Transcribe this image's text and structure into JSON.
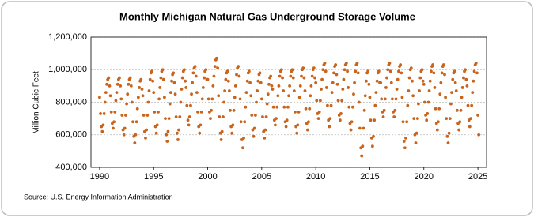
{
  "chart_data": {
    "type": "scatter",
    "title": "Monthly Michigan Natural Gas Underground Storage Volume",
    "y_label": "Million Cubic Feet",
    "source": "Source: U.S. Energy Information Administration",
    "color": "#c8641e",
    "grid": true,
    "xlim": [
      1989.2,
      2025.8
    ],
    "xticks": [
      1990,
      1995,
      2000,
      2005,
      2010,
      2015,
      2020,
      2025
    ],
    "ylim": [
      400000,
      1200000
    ],
    "yticks": [
      {
        "value": 400000,
        "label": "400,000"
      },
      {
        "value": 600000,
        "label": "600,000"
      },
      {
        "value": 800000,
        "label": "800,000"
      },
      {
        "value": 1000000,
        "label": "1,000,000"
      },
      {
        "value": 1200000,
        "label": "1,200,000"
      }
    ],
    "x": [
      1990.0,
      1990.08,
      1990.17,
      1990.25,
      1990.33,
      1990.42,
      1990.5,
      1990.58,
      1990.67,
      1990.75,
      1990.83,
      1990.92,
      1991.0,
      1991.08,
      1991.17,
      1991.25,
      1991.33,
      1991.42,
      1991.5,
      1991.58,
      1991.67,
      1991.75,
      1991.83,
      1991.92,
      1992.0,
      1992.08,
      1992.17,
      1992.25,
      1992.33,
      1992.42,
      1992.5,
      1992.58,
      1992.67,
      1992.75,
      1992.83,
      1992.92,
      1993.0,
      1993.08,
      1993.17,
      1993.25,
      1993.33,
      1993.42,
      1993.5,
      1993.58,
      1993.67,
      1993.75,
      1993.83,
      1993.92,
      1994.0,
      1994.08,
      1994.17,
      1994.25,
      1994.33,
      1994.42,
      1994.5,
      1994.58,
      1994.67,
      1994.75,
      1994.83,
      1994.92,
      1995.0,
      1995.08,
      1995.17,
      1995.25,
      1995.33,
      1995.42,
      1995.5,
      1995.58,
      1995.67,
      1995.75,
      1995.83,
      1995.92,
      1996.0,
      1996.08,
      1996.17,
      1996.25,
      1996.33,
      1996.42,
      1996.5,
      1996.58,
      1996.67,
      1996.75,
      1996.83,
      1996.92,
      1997.0,
      1997.08,
      1997.17,
      1997.25,
      1997.33,
      1997.42,
      1997.5,
      1997.58,
      1997.67,
      1997.75,
      1997.83,
      1997.92,
      1998.0,
      1998.08,
      1998.17,
      1998.25,
      1998.33,
      1998.42,
      1998.5,
      1998.58,
      1998.67,
      1998.75,
      1998.83,
      1998.92,
      1999.0,
      1999.08,
      1999.17,
      1999.25,
      1999.33,
      1999.42,
      1999.5,
      1999.58,
      1999.67,
      1999.75,
      1999.83,
      1999.92,
      2000.0,
      2000.08,
      2000.17,
      2000.25,
      2000.33,
      2000.42,
      2000.5,
      2000.58,
      2000.67,
      2000.75,
      2000.83,
      2000.92,
      2001.0,
      2001.08,
      2001.17,
      2001.25,
      2001.33,
      2001.42,
      2001.5,
      2001.58,
      2001.67,
      2001.75,
      2001.83,
      2001.92,
      2002.0,
      2002.08,
      2002.17,
      2002.25,
      2002.33,
      2002.42,
      2002.5,
      2002.58,
      2002.67,
      2002.75,
      2002.83,
      2002.92,
      2003.0,
      2003.08,
      2003.17,
      2003.25,
      2003.33,
      2003.42,
      2003.5,
      2003.58,
      2003.67,
      2003.75,
      2003.83,
      2003.92,
      2004.0,
      2004.08,
      2004.17,
      2004.25,
      2004.33,
      2004.42,
      2004.5,
      2004.58,
      2004.67,
      2004.75,
      2004.83,
      2004.92,
      2005.0,
      2005.08,
      2005.17,
      2005.25,
      2005.33,
      2005.42,
      2005.5,
      2005.58,
      2005.67,
      2005.75,
      2005.83,
      2005.92,
      2006.0,
      2006.08,
      2006.17,
      2006.25,
      2006.33,
      2006.42,
      2006.5,
      2006.58,
      2006.67,
      2006.75,
      2006.83,
      2006.92,
      2007.0,
      2007.08,
      2007.17,
      2007.25,
      2007.33,
      2007.42,
      2007.5,
      2007.58,
      2007.67,
      2007.75,
      2007.83,
      2007.92,
      2008.0,
      2008.08,
      2008.17,
      2008.25,
      2008.33,
      2008.42,
      2008.5,
      2008.58,
      2008.67,
      2008.75,
      2008.83,
      2008.92,
      2009.0,
      2009.08,
      2009.17,
      2009.25,
      2009.33,
      2009.42,
      2009.5,
      2009.58,
      2009.67,
      2009.75,
      2009.83,
      2009.92,
      2010.0,
      2010.08,
      2010.17,
      2010.25,
      2010.33,
      2010.42,
      2010.5,
      2010.58,
      2010.67,
      2010.75,
      2010.83,
      2010.92,
      2011.0,
      2011.08,
      2011.17,
      2011.25,
      2011.33,
      2011.42,
      2011.5,
      2011.58,
      2011.67,
      2011.75,
      2011.83,
      2011.92,
      2012.0,
      2012.08,
      2012.17,
      2012.25,
      2012.33,
      2012.42,
      2012.5,
      2012.58,
      2012.67,
      2012.75,
      2012.83,
      2012.92,
      2013.0,
      2013.08,
      2013.17,
      2013.25,
      2013.33,
      2013.42,
      2013.5,
      2013.58,
      2013.67,
      2013.75,
      2013.83,
      2013.92,
      2014.0,
      2014.08,
      2014.17,
      2014.25,
      2014.33,
      2014.42,
      2014.5,
      2014.58,
      2014.67,
      2014.75,
      2014.83,
      2014.92,
      2015.0,
      2015.08,
      2015.17,
      2015.25,
      2015.33,
      2015.42,
      2015.5,
      2015.58,
      2015.67,
      2015.75,
      2015.83,
      2015.92,
      2016.0,
      2016.08,
      2016.17,
      2016.25,
      2016.33,
      2016.42,
      2016.5,
      2016.58,
      2016.67,
      2016.75,
      2016.83,
      2016.92,
      2017.0,
      2017.08,
      2017.17,
      2017.25,
      2017.33,
      2017.42,
      2017.5,
      2017.58,
      2017.67,
      2017.75,
      2017.83,
      2017.92,
      2018.0,
      2018.08,
      2018.17,
      2018.25,
      2018.33,
      2018.42,
      2018.5,
      2018.58,
      2018.67,
      2018.75,
      2018.83,
      2018.92,
      2019.0,
      2019.08,
      2019.17,
      2019.25,
      2019.33,
      2019.42,
      2019.5,
      2019.58,
      2019.67,
      2019.75,
      2019.83,
      2019.92,
      2020.0,
      2020.08,
      2020.17,
      2020.25,
      2020.33,
      2020.42,
      2020.5,
      2020.58,
      2020.67,
      2020.75,
      2020.83,
      2020.92,
      2021.0,
      2021.08,
      2021.17,
      2021.25,
      2021.33,
      2021.42,
      2021.5,
      2021.58,
      2021.67,
      2021.75,
      2021.83,
      2021.92,
      2022.0,
      2022.08,
      2022.17,
      2022.25,
      2022.33,
      2022.42,
      2022.5,
      2022.58,
      2022.67,
      2022.75,
      2022.83,
      2022.92,
      2023.0,
      2023.08,
      2023.17,
      2023.25,
      2023.33,
      2023.42,
      2023.5,
      2023.58,
      2023.67,
      2023.75,
      2023.83,
      2023.92,
      2024.0,
      2024.08,
      2024.17,
      2024.25,
      2024.33,
      2024.42,
      2024.5,
      2024.58,
      2024.67,
      2024.75,
      2024.83,
      2024.92,
      2025.0,
      2025.08
    ],
    "values": [
      830000,
      730000,
      650000,
      620000,
      660000,
      730000,
      800000,
      860000,
      910000,
      940000,
      950000,
      900000,
      840000,
      740000,
      670000,
      640000,
      680000,
      740000,
      810000,
      860000,
      910000,
      940000,
      950000,
      900000,
      820000,
      720000,
      630000,
      600000,
      640000,
      720000,
      790000,
      850000,
      910000,
      940000,
      950000,
      900000,
      800000,
      680000,
      590000,
      550000,
      600000,
      680000,
      760000,
      830000,
      890000,
      930000,
      940000,
      880000,
      840000,
      720000,
      620000,
      580000,
      630000,
      720000,
      800000,
      870000,
      940000,
      980000,
      990000,
      930000,
      860000,
      740000,
      650000,
      610000,
      660000,
      740000,
      820000,
      890000,
      950000,
      990000,
      1000000,
      940000,
      830000,
      700000,
      600000,
      560000,
      620000,
      700000,
      790000,
      860000,
      930000,
      970000,
      980000,
      920000,
      850000,
      710000,
      610000,
      570000,
      630000,
      710000,
      800000,
      880000,
      950000,
      990000,
      1000000,
      930000,
      890000,
      780000,
      690000,
      660000,
      710000,
      780000,
      850000,
      920000,
      980000,
      1010000,
      1020000,
      960000,
      860000,
      740000,
      650000,
      610000,
      660000,
      740000,
      820000,
      890000,
      950000,
      990000,
      1000000,
      940000,
      940000,
      820000,
      740000,
      700000,
      750000,
      820000,
      900000,
      960000,
      1020000,
      1060000,
      1070000,
      1010000,
      840000,
      710000,
      610000,
      570000,
      620000,
      710000,
      800000,
      870000,
      940000,
      980000,
      990000,
      930000,
      870000,
      750000,
      650000,
      610000,
      660000,
      750000,
      830000,
      900000,
      970000,
      1010000,
      1020000,
      960000,
      820000,
      680000,
      570000,
      520000,
      580000,
      680000,
      770000,
      860000,
      930000,
      980000,
      990000,
      920000,
      840000,
      720000,
      630000,
      590000,
      640000,
      720000,
      800000,
      870000,
      930000,
      970000,
      980000,
      920000,
      820000,
      710000,
      620000,
      580000,
      630000,
      710000,
      790000,
      850000,
      910000,
      950000,
      960000,
      900000,
      880000,
      770000,
      690000,
      660000,
      700000,
      770000,
      840000,
      900000,
      960000,
      990000,
      1000000,
      950000,
      870000,
      770000,
      680000,
      650000,
      690000,
      770000,
      840000,
      900000,
      960000,
      990000,
      1000000,
      950000,
      870000,
      740000,
      650000,
      610000,
      660000,
      740000,
      830000,
      900000,
      960000,
      1000000,
      1010000,
      950000,
      870000,
      760000,
      670000,
      630000,
      680000,
      760000,
      840000,
      900000,
      960000,
      1000000,
      1010000,
      950000,
      920000,
      810000,
      730000,
      700000,
      740000,
      810000,
      880000,
      940000,
      1000000,
      1030000,
      1040000,
      990000,
      890000,
      780000,
      690000,
      650000,
      700000,
      780000,
      860000,
      920000,
      980000,
      1020000,
      1030000,
      970000,
      910000,
      810000,
      720000,
      690000,
      730000,
      810000,
      880000,
      940000,
      1000000,
      1030000,
      1040000,
      990000,
      890000,
      770000,
      670000,
      630000,
      680000,
      770000,
      850000,
      920000,
      990000,
      1030000,
      1040000,
      980000,
      800000,
      640000,
      520000,
      470000,
      530000,
      640000,
      750000,
      840000,
      930000,
      980000,
      990000,
      910000,
      830000,
      690000,
      580000,
      530000,
      590000,
      690000,
      780000,
      860000,
      930000,
      980000,
      990000,
      920000,
      920000,
      820000,
      740000,
      710000,
      750000,
      820000,
      890000,
      950000,
      1000000,
      1030000,
      1040000,
      990000,
      920000,
      820000,
      740000,
      710000,
      750000,
      820000,
      880000,
      940000,
      990000,
      1020000,
      1030000,
      980000,
      830000,
      680000,
      560000,
      520000,
      580000,
      680000,
      780000,
      870000,
      950000,
      1000000,
      1010000,
      930000,
      840000,
      700000,
      600000,
      550000,
      610000,
      700000,
      790000,
      870000,
      950000,
      990000,
      1000000,
      930000,
      910000,
      800000,
      720000,
      690000,
      730000,
      800000,
      870000,
      930000,
      990000,
      1020000,
      1030000,
      980000,
      890000,
      760000,
      670000,
      630000,
      680000,
      760000,
      850000,
      920000,
      980000,
      1020000,
      1030000,
      970000,
      830000,
      700000,
      590000,
      550000,
      610000,
      700000,
      790000,
      860000,
      940000,
      980000,
      990000,
      920000,
      870000,
      750000,
      670000,
      630000,
      680000,
      750000,
      830000,
      890000,
      950000,
      990000,
      1000000,
      940000,
      900000,
      780000,
      690000,
      650000,
      700000,
      780000,
      860000,
      930000,
      990000,
      1030000,
      1040000,
      980000,
      720000,
      600000
    ]
  }
}
